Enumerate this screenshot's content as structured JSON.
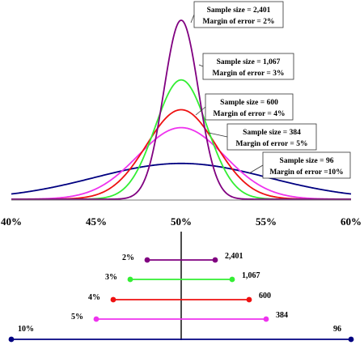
{
  "chart_data": [
    {
      "type": "line",
      "title": "",
      "xlabel": "",
      "ylabel": "",
      "xlim": [
        40,
        60
      ],
      "x_ticks": [
        "40%",
        "45%",
        "50%",
        "55%",
        "60%"
      ],
      "x_tick_values": [
        40,
        45,
        50,
        55,
        60
      ],
      "grid": false,
      "legend": "callout boxes, upper right",
      "series": [
        {
          "sample_size": 2401,
          "margin_of_error": 2,
          "color": "#800080",
          "label_line1": "Sample size = 2,401",
          "label_line2": "Margin of error = 2%"
        },
        {
          "sample_size": 1067,
          "margin_of_error": 3,
          "color": "#33ee33",
          "label_line1": "Sample size = 1,067",
          "label_line2": "Margin of error = 3%"
        },
        {
          "sample_size": 600,
          "margin_of_error": 4,
          "color": "#ee1111",
          "label_line1": "Sample size = 600",
          "label_line2": "Margin of error = 4%"
        },
        {
          "sample_size": 384,
          "margin_of_error": 5,
          "color": "#ee33ee",
          "label_line1": "Sample size = 384",
          "label_line2": "Margin of error = 5%"
        },
        {
          "sample_size": 96,
          "margin_of_error": 10,
          "color": "#000080",
          "label_line1": "Sample size = 96",
          "label_line2": "Margin of error =10%"
        }
      ]
    },
    {
      "type": "interval",
      "center": 50,
      "intervals": [
        {
          "low": 48,
          "high": 52,
          "margin_label": "2%",
          "size_label": "2,401",
          "color": "#800080"
        },
        {
          "low": 47,
          "high": 53,
          "margin_label": "3%",
          "size_label": "1,067",
          "color": "#33ee33"
        },
        {
          "low": 46,
          "high": 54,
          "margin_label": "4%",
          "size_label": "600",
          "color": "#ee1111"
        },
        {
          "low": 45,
          "high": 55,
          "margin_label": "5%",
          "size_label": "384",
          "color": "#ee33ee"
        },
        {
          "low": 40,
          "high": 60,
          "margin_label": "10%",
          "size_label": "96",
          "color": "#000080"
        }
      ]
    }
  ]
}
